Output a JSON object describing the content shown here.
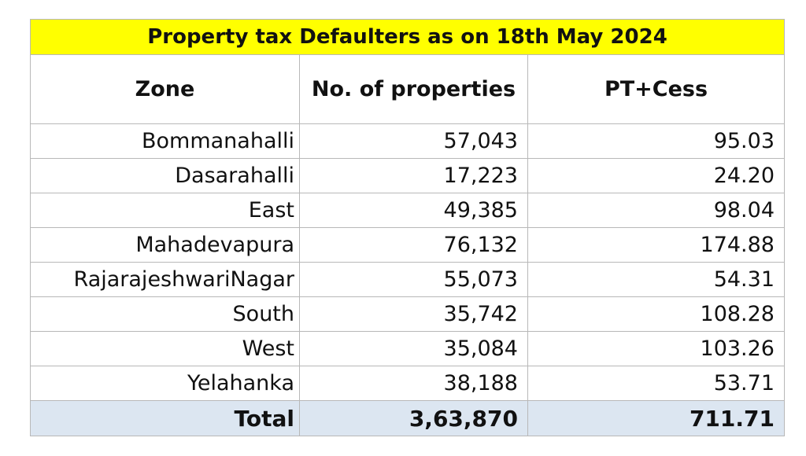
{
  "title": "Property tax Defaulters as on 18th May 2024",
  "columns": [
    "Zone",
    "No. of properties",
    "PT+Cess"
  ],
  "rows": [
    {
      "zone": "Bommanahalli",
      "properties": "57,043",
      "pt_cess": "95.03"
    },
    {
      "zone": "Dasarahalli",
      "properties": "17,223",
      "pt_cess": "24.20"
    },
    {
      "zone": "East",
      "properties": "49,385",
      "pt_cess": "98.04"
    },
    {
      "zone": "Mahadevapura",
      "properties": "76,132",
      "pt_cess": "174.88"
    },
    {
      "zone": "RajarajeshwariNagar",
      "properties": "55,073",
      "pt_cess": "54.31"
    },
    {
      "zone": "South",
      "properties": "35,742",
      "pt_cess": "108.28"
    },
    {
      "zone": "West",
      "properties": "35,084",
      "pt_cess": "103.26"
    },
    {
      "zone": "Yelahanka",
      "properties": "38,188",
      "pt_cess": "53.71"
    }
  ],
  "total": {
    "label": "Total",
    "properties": "3,63,870",
    "pt_cess": "711.71"
  },
  "colors": {
    "title_bg": "#ffff00",
    "total_bg": "#dce6f1",
    "border": "#b8b8b8"
  }
}
